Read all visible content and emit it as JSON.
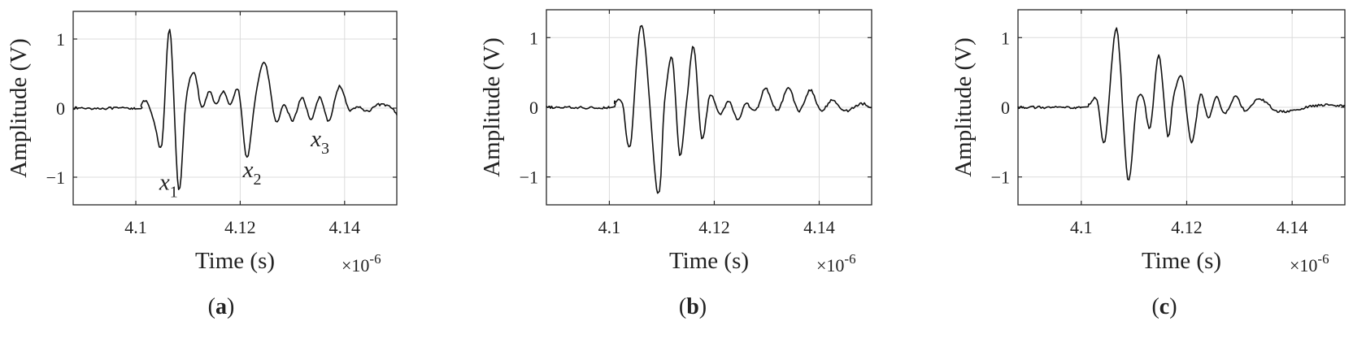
{
  "chart_data": [
    {
      "panel": "a",
      "caption_letter": "a",
      "type": "line",
      "xlabel": "Time (s)",
      "ylabel": "Amplitude (V)",
      "x_multiplier": "×10",
      "x_exponent": "-6",
      "xlim": [
        4.088,
        4.15
      ],
      "ylim": [
        -1.4,
        1.4
      ],
      "xticks": [
        {
          "value": 4.1,
          "label": "4.1"
        },
        {
          "value": 4.12,
          "label": "4.12"
        },
        {
          "value": 4.14,
          "label": "4.14"
        }
      ],
      "yticks": [
        {
          "value": -1,
          "label": "−1"
        },
        {
          "value": 0,
          "label": "0"
        },
        {
          "value": 1,
          "label": "1"
        }
      ],
      "grid": true,
      "annotations": [
        {
          "base": "x",
          "sub": "1",
          "x": 4.1045,
          "y": -1.18
        },
        {
          "base": "x",
          "sub": "2",
          "x": 4.1205,
          "y": -1.0
        },
        {
          "base": "x",
          "sub": "3",
          "x": 4.1335,
          "y": -0.55
        }
      ],
      "series": [
        {
          "x": [
            4.088,
            4.1,
            4.101,
            4.102,
            4.1035,
            4.105,
            4.1065,
            4.1082,
            4.1096,
            4.1112,
            4.1126,
            4.1141,
            4.1154,
            4.1168,
            4.1181,
            4.1197,
            4.1213,
            4.123,
            4.1248,
            4.1268,
            4.1284,
            4.1301,
            4.1318,
            4.1336,
            4.1352,
            4.137,
            4.139,
            4.1408,
            4.1425,
            4.1445,
            4.1465,
            4.149,
            4.15
          ],
          "y": [
            0,
            0,
            0.04,
            0.1,
            -0.2,
            -0.52,
            1.15,
            -1.18,
            0.1,
            0.52,
            0.0,
            0.25,
            0.05,
            0.25,
            0.05,
            0.25,
            -0.72,
            0.2,
            0.65,
            -0.2,
            0.05,
            -0.18,
            0.15,
            -0.16,
            0.15,
            -0.18,
            0.32,
            -0.02,
            0.02,
            -0.05,
            0.05,
            0.0,
            -0.1
          ]
        }
      ]
    },
    {
      "panel": "b",
      "caption_letter": "b",
      "type": "line",
      "xlabel": "Time (s)",
      "ylabel": "Amplitude (V)",
      "x_multiplier": "×10",
      "x_exponent": "-6",
      "xlim": [
        4.088,
        4.15
      ],
      "ylim": [
        -1.4,
        1.4
      ],
      "xticks": [
        {
          "value": 4.1,
          "label": "4.1"
        },
        {
          "value": 4.12,
          "label": "4.12"
        },
        {
          "value": 4.14,
          "label": "4.14"
        }
      ],
      "yticks": [
        {
          "value": -1,
          "label": "−1"
        },
        {
          "value": 0,
          "label": "0"
        },
        {
          "value": 1,
          "label": "1"
        }
      ],
      "grid": true,
      "annotations": [],
      "series": [
        {
          "x": [
            4.088,
            4.1,
            4.101,
            4.1025,
            4.104,
            4.1062,
            4.1092,
            4.1105,
            4.112,
            4.1134,
            4.1147,
            4.1161,
            4.1176,
            4.1192,
            4.121,
            4.1228,
            4.1245,
            4.126,
            4.1279,
            4.1298,
            4.132,
            4.1341,
            4.1362,
            4.1383,
            4.1403,
            4.1425,
            4.145,
            4.148,
            4.15
          ],
          "y": [
            0,
            0,
            0.08,
            0.04,
            -0.55,
            1.18,
            -1.25,
            0.05,
            0.7,
            -0.68,
            0.05,
            0.87,
            -0.45,
            0.18,
            -0.1,
            0.08,
            -0.18,
            0.05,
            -0.05,
            0.27,
            -0.05,
            0.27,
            -0.05,
            0.25,
            -0.05,
            0.1,
            -0.05,
            0.05,
            0.0
          ]
        }
      ]
    },
    {
      "panel": "c",
      "caption_letter": "c",
      "type": "line",
      "xlabel": "Time (s)",
      "ylabel": "Amplitude (V)",
      "x_multiplier": "×10",
      "x_exponent": "-6",
      "xlim": [
        4.088,
        4.15
      ],
      "ylim": [
        -1.4,
        1.4
      ],
      "xticks": [
        {
          "value": 4.1,
          "label": "4.1"
        },
        {
          "value": 4.12,
          "label": "4.12"
        },
        {
          "value": 4.14,
          "label": "4.14"
        }
      ],
      "yticks": [
        {
          "value": -1,
          "label": "−1"
        },
        {
          "value": 0,
          "label": "0"
        },
        {
          "value": 1,
          "label": "1"
        }
      ],
      "grid": true,
      "annotations": [],
      "series": [
        {
          "x": [
            4.088,
            4.1,
            4.1015,
            4.103,
            4.1045,
            4.1067,
            4.1088,
            4.1105,
            4.1117,
            4.1131,
            4.1147,
            4.1164,
            4.1175,
            4.1191,
            4.1209,
            4.1226,
            4.1241,
            4.1257,
            4.1272,
            4.1292,
            4.1312,
            4.1338,
            4.137,
            4.14,
            4.145,
            4.15
          ],
          "y": [
            0,
            0,
            0.05,
            0.1,
            -0.5,
            1.13,
            -1.02,
            0.05,
            0.15,
            -0.28,
            0.75,
            -0.42,
            0.15,
            0.43,
            -0.5,
            0.18,
            -0.15,
            0.15,
            -0.1,
            0.15,
            -0.05,
            0.12,
            -0.05,
            -0.05,
            0.03,
            0.02
          ]
        }
      ]
    }
  ]
}
